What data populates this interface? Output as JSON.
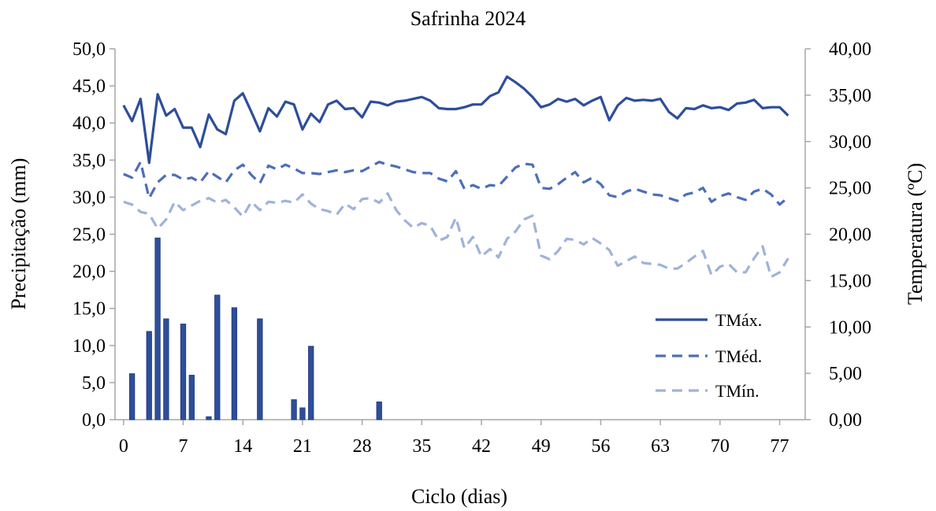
{
  "chart_data": {
    "type": "bar+line",
    "title": "Safrinha 2024",
    "xlabel": "Ciclo (dias)",
    "ylabel_left": "Precipitação (mm)",
    "ylabel_right": "Temperatura (ºC)",
    "xlim": [
      -1,
      80
    ],
    "ylim_left": [
      0,
      50
    ],
    "ylim_right": [
      0,
      40
    ],
    "x_ticks": [
      "0",
      "7",
      "14",
      "21",
      "28",
      "35",
      "42",
      "49",
      "56",
      "63",
      "70",
      "77"
    ],
    "x_tick_values": [
      0,
      7,
      14,
      21,
      28,
      35,
      42,
      49,
      56,
      63,
      70,
      77
    ],
    "y_left_ticks": [
      "0,0",
      "5,0",
      "10,0",
      "15,0",
      "20,0",
      "25,0",
      "30,0",
      "35,0",
      "40,0",
      "45,0",
      "50,0"
    ],
    "y_left_tick_values": [
      0,
      5,
      10,
      15,
      20,
      25,
      30,
      35,
      40,
      45,
      50
    ],
    "y_right_ticks": [
      "0,00",
      "5,00",
      "10,00",
      "15,00",
      "20,00",
      "25,00",
      "30,00",
      "35,00",
      "40,00"
    ],
    "y_right_tick_values": [
      0,
      5,
      10,
      15,
      20,
      25,
      30,
      35,
      40
    ],
    "grid": false,
    "legend_position": "right-middle",
    "precipitation": {
      "color": "#2E4E9A",
      "x": [
        1,
        3,
        4,
        5,
        7,
        8,
        10,
        11,
        13,
        16,
        20,
        21,
        22,
        30
      ],
      "values": [
        6.2,
        11.9,
        24.5,
        13.6,
        12.9,
        6.0,
        0.4,
        16.8,
        15.1,
        13.6,
        2.7,
        1.6,
        9.9,
        2.4
      ]
    },
    "series": [
      {
        "name": "TMáx.",
        "style": "solid",
        "color": "#2E4E9A",
        "x": [
          0,
          1,
          2,
          3,
          4,
          5,
          6,
          7,
          8,
          9,
          10,
          11,
          12,
          13,
          14,
          15,
          16,
          17,
          18,
          19,
          20,
          21,
          22,
          23,
          24,
          25,
          26,
          27,
          28,
          29,
          30,
          31,
          32,
          33,
          34,
          35,
          36,
          37,
          38,
          39,
          40,
          41,
          42,
          43,
          44,
          45,
          46,
          47,
          48,
          49,
          50,
          51,
          52,
          53,
          54,
          55,
          56,
          57,
          58,
          59,
          60,
          61,
          62,
          63,
          64,
          65,
          66,
          67,
          68,
          69,
          70,
          71,
          72,
          73,
          74,
          75,
          76,
          77,
          78
        ],
        "values": [
          33.9,
          32.2,
          34.6,
          27.7,
          35.1,
          32.8,
          33.5,
          31.5,
          31.5,
          29.4,
          32.9,
          31.3,
          30.8,
          34.4,
          35.2,
          33.2,
          31.1,
          33.6,
          32.7,
          34.3,
          34.0,
          31.3,
          33.0,
          32.1,
          34.0,
          34.4,
          33.5,
          33.6,
          32.6,
          34.3,
          34.2,
          33.9,
          34.3,
          34.4,
          34.6,
          34.8,
          34.4,
          33.6,
          33.5,
          33.5,
          33.7,
          34.0,
          34.0,
          34.9,
          35.3,
          37.0,
          36.4,
          35.7,
          34.8,
          33.7,
          34.0,
          34.6,
          34.3,
          34.6,
          33.9,
          34.4,
          34.8,
          32.3,
          33.9,
          34.7,
          34.4,
          34.5,
          34.4,
          34.6,
          33.2,
          32.5,
          33.6,
          33.5,
          33.9,
          33.6,
          33.7,
          33.4,
          34.1,
          34.2,
          34.5,
          33.6,
          33.7,
          33.7,
          32.8
        ]
      },
      {
        "name": "TMéd.",
        "style": "dashed",
        "color": "#4C6FB8",
        "x": [
          0,
          1,
          2,
          3,
          4,
          5,
          6,
          7,
          8,
          9,
          10,
          11,
          12,
          13,
          14,
          15,
          16,
          17,
          18,
          19,
          20,
          21,
          22,
          23,
          24,
          25,
          26,
          27,
          28,
          29,
          30,
          31,
          32,
          33,
          34,
          35,
          36,
          37,
          38,
          39,
          40,
          41,
          42,
          43,
          44,
          45,
          46,
          47,
          48,
          49,
          50,
          51,
          52,
          53,
          54,
          55,
          56,
          57,
          58,
          59,
          60,
          61,
          62,
          63,
          64,
          65,
          66,
          67,
          68,
          69,
          70,
          71,
          72,
          73,
          74,
          75,
          76,
          77,
          78
        ],
        "values": [
          26.5,
          26.1,
          27.8,
          23.9,
          25.6,
          26.4,
          26.4,
          25.9,
          26.1,
          25.6,
          26.8,
          26.2,
          25.6,
          26.9,
          27.5,
          26.4,
          25.5,
          27.4,
          27.0,
          27.5,
          27.1,
          26.6,
          26.6,
          26.5,
          26.7,
          26.9,
          26.7,
          26.9,
          26.8,
          27.3,
          27.8,
          27.5,
          27.3,
          27.0,
          26.7,
          26.6,
          26.6,
          26.0,
          25.7,
          26.8,
          24.9,
          25.3,
          24.9,
          25.3,
          25.2,
          26.2,
          27.2,
          27.6,
          27.5,
          25.0,
          24.9,
          25.4,
          26.1,
          26.7,
          25.6,
          26.1,
          25.4,
          24.2,
          24.0,
          24.6,
          24.9,
          24.6,
          24.3,
          24.2,
          23.9,
          23.6,
          24.3,
          24.5,
          25.0,
          23.5,
          24.1,
          24.4,
          24.0,
          23.7,
          24.6,
          24.9,
          24.3,
          23.2,
          24.0
        ]
      },
      {
        "name": "TMín.",
        "style": "dashed",
        "color": "#9FB2D9",
        "x": [
          0,
          1,
          2,
          3,
          4,
          5,
          6,
          7,
          8,
          9,
          10,
          11,
          12,
          13,
          14,
          15,
          16,
          17,
          18,
          19,
          20,
          21,
          22,
          23,
          24,
          25,
          26,
          27,
          28,
          29,
          30,
          31,
          32,
          33,
          34,
          35,
          36,
          37,
          38,
          39,
          40,
          41,
          42,
          43,
          44,
          45,
          46,
          47,
          48,
          49,
          50,
          51,
          52,
          53,
          54,
          55,
          56,
          57,
          58,
          59,
          60,
          61,
          62,
          63,
          64,
          65,
          66,
          67,
          68,
          69,
          70,
          71,
          72,
          73,
          74,
          75,
          76,
          77,
          78
        ],
        "values": [
          23.5,
          23.2,
          22.4,
          22.2,
          20.6,
          21.6,
          23.5,
          22.6,
          23.1,
          23.6,
          23.9,
          23.4,
          23.7,
          22.9,
          21.9,
          23.5,
          22.6,
          23.5,
          23.4,
          23.6,
          23.4,
          24.3,
          23.3,
          22.7,
          22.5,
          22.1,
          23.3,
          22.7,
          23.8,
          23.9,
          23.4,
          24.4,
          22.6,
          21.5,
          20.7,
          21.2,
          20.9,
          19.3,
          19.7,
          21.8,
          18.5,
          19.7,
          17.6,
          18.4,
          17.5,
          19.5,
          20.3,
          21.6,
          22.0,
          17.7,
          17.3,
          18.2,
          19.5,
          19.4,
          18.9,
          19.6,
          19.0,
          18.3,
          16.6,
          17.1,
          17.6,
          16.9,
          16.8,
          16.7,
          16.3,
          16.3,
          16.9,
          17.6,
          18.2,
          15.6,
          16.5,
          16.8,
          15.9,
          15.9,
          17.4,
          18.7,
          15.4,
          15.9,
          17.4
        ]
      }
    ]
  }
}
